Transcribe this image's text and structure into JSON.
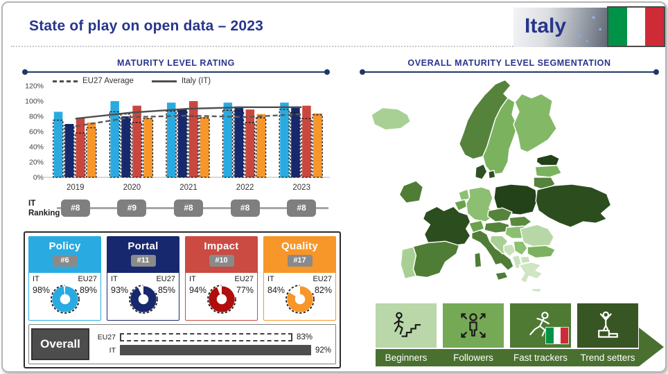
{
  "slide": {
    "title": "State of play on open data – 2023",
    "country_label": "Italy"
  },
  "chart_data": {
    "type": "bar",
    "title": "MATURITY LEVEL RATING",
    "categories": [
      "2019",
      "2020",
      "2021",
      "2022",
      "2023"
    ],
    "ylim": [
      0,
      120
    ],
    "yticks": [
      "0%",
      "20%",
      "40%",
      "60%",
      "80%",
      "100%",
      "120%"
    ],
    "legend": [
      {
        "label": "EU27 Average",
        "style": "dashed"
      },
      {
        "label": "Italy (IT)",
        "style": "solid"
      }
    ],
    "series": [
      {
        "name": "Policy",
        "color": "#29abe2",
        "it": [
          86,
          100,
          98,
          98,
          98
        ],
        "eu27": [
          75,
          86,
          87,
          88,
          89
        ]
      },
      {
        "name": "Portal",
        "color": "#17286e",
        "it": [
          70,
          80,
          90,
          93,
          93
        ],
        "eu27": [
          68,
          83,
          88,
          87,
          85
        ]
      },
      {
        "name": "Impact",
        "color": "#c9473f",
        "it": [
          78,
          94,
          100,
          89,
          94
        ],
        "eu27": [
          58,
          72,
          80,
          72,
          77
        ]
      },
      {
        "name": "Quality",
        "color": "#f79629",
        "it": [
          72,
          78,
          79,
          83,
          84
        ],
        "eu27": [
          65,
          77,
          78,
          78,
          82
        ]
      }
    ],
    "lines": [
      {
        "name": "EU27 Average",
        "style": "dashed",
        "values": [
          67,
          79,
          81,
          79,
          83
        ]
      },
      {
        "name": "Italy (IT)",
        "style": "solid",
        "values": [
          77,
          85,
          90,
          92,
          92
        ]
      }
    ]
  },
  "ranking": {
    "label_line1": "IT",
    "label_line2": "Ranking",
    "items": [
      "#8",
      "#9",
      "#8",
      "#8",
      "#8"
    ]
  },
  "cards": [
    {
      "label": "Policy",
      "rank": "#6",
      "it_label": "IT",
      "eu_label": "EU27",
      "it_display": "98%",
      "eu_display": "89%",
      "it": 98,
      "eu": 89,
      "color": "#29abe2",
      "donut_color": "#29abe2"
    },
    {
      "label": "Portal",
      "rank": "#11",
      "it_label": "IT",
      "eu_label": "EU27",
      "it_display": "93%",
      "eu_display": "85%",
      "it": 93,
      "eu": 85,
      "color": "#17286e",
      "donut_color": "#17286e"
    },
    {
      "label": "Impact",
      "rank": "#10",
      "it_label": "IT",
      "eu_label": "EU27",
      "it_display": "94%",
      "eu_display": "77%",
      "it": 94,
      "eu": 77,
      "color": "#cb4a42",
      "donut_color": "#b00d0d"
    },
    {
      "label": "Quality",
      "rank": "#17",
      "it_label": "IT",
      "eu_label": "EU27",
      "it_display": "84%",
      "eu_display": "82%",
      "it": 84,
      "eu": 82,
      "color": "#f79629",
      "donut_color": "#f79629"
    }
  ],
  "overall": {
    "label": "Overall",
    "bar_color": "#4d4d4d",
    "rows": [
      {
        "label": "EU27",
        "value": 83,
        "display": "83%",
        "style": "dashed"
      },
      {
        "label": "IT",
        "value": 92,
        "display": "92%",
        "style": "solid"
      }
    ]
  },
  "right": {
    "section_title": "OVERALL MATURITY LEVEL SEGMENTATION",
    "band_color": "#4a7030",
    "segments": [
      {
        "label": "Beginners",
        "color": "#b9d7a8",
        "icon": "person-climbing-stairs-icon",
        "icon_color": "#1a1a1a"
      },
      {
        "label": "Followers",
        "color": "#76a956",
        "icon": "person-expanding-arrows-icon",
        "icon_color": "#1a1a1a"
      },
      {
        "label": "Fast trackers",
        "color": "#4e7a33",
        "icon": "person-running-icon",
        "icon_color": "#ffffff",
        "flag": "italy"
      },
      {
        "label": "Trend setters",
        "color": "#375623",
        "icon": "person-on-podium-icon",
        "icon_color": "#ffffff"
      }
    ],
    "map_countries": {
      "iceland": "#a9d094",
      "norway": "#55833c",
      "sweden": "#7bb25d",
      "finland": "#83b966",
      "estonia": "#24421a",
      "latvia": "#7bb25d",
      "lithuania": "#55833c",
      "denmark": "#2f5122",
      "ireland": "#4f7d36",
      "netherlands": "#8cbf71",
      "belgium": "#6ba24c",
      "germany": "#8cbf71",
      "poland": "#24421a",
      "czechia": "#55833c",
      "slovakia": "#5b8a3e",
      "austria": "#55833c",
      "switzerland": "#6ba24c",
      "hungary": "#8cbf71",
      "ukraine": "#2c4d1d",
      "romania": "#b7d8a6",
      "bulgaria": "#7bb25d",
      "france": "#2c4d1d",
      "spain": "#4f7d36",
      "portugal": "#a9d094",
      "italy": "#4f7d36",
      "croatia": "#a9d094",
      "bosnia": "#c9e2bc",
      "serbia": "#8cbf71",
      "albania": "#c9e2bc",
      "macedonia": "#c9e2bc",
      "greece": "#cfe5c3"
    }
  },
  "flag_colors": {
    "green": "#009246",
    "white": "#ffffff",
    "red": "#ce2b37"
  }
}
